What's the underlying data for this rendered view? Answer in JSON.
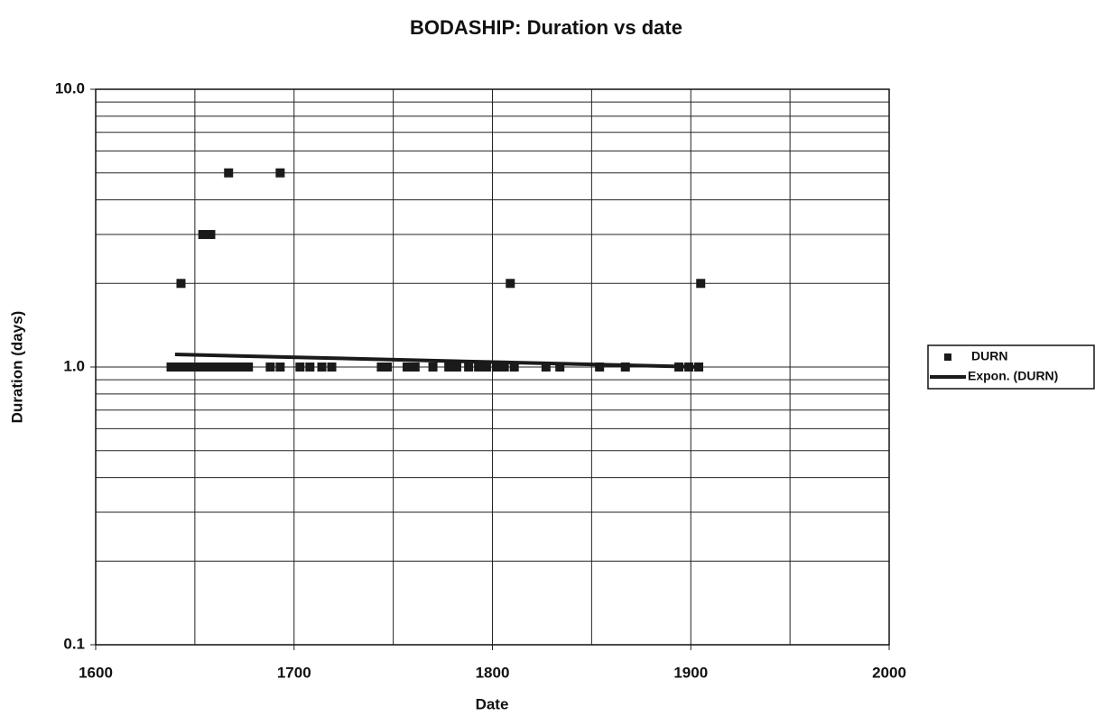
{
  "chart_data": {
    "type": "scatter",
    "title": "BODASHIP: Duration vs date",
    "x_label": "Date",
    "y_label": "Duration (days)",
    "xlim": [
      1600,
      2000
    ],
    "xticks": [
      1600,
      1700,
      1800,
      1900,
      2000
    ],
    "x_minor_ticks": [
      1650,
      1750,
      1850,
      1950
    ],
    "ylim": [
      0.1,
      10
    ],
    "yticks": [
      0.1,
      {
        "value": 1,
        "label": "1.0"
      },
      {
        "value": 10,
        "label": "10.0"
      }
    ],
    "log_y": true,
    "minor_grid": true,
    "grid": true,
    "legend": "right",
    "series": [
      {
        "name": "DURN",
        "color": "#1a1a1a",
        "x": [
          1643,
          1654,
          1658,
          1667,
          1693,
          1809,
          1905,
          1638,
          1641,
          1644,
          1647,
          1650,
          1653,
          1656,
          1659,
          1662,
          1665,
          1668,
          1671,
          1674,
          1677,
          1688,
          1693,
          1703,
          1708,
          1714,
          1719,
          1744,
          1747,
          1757,
          1761,
          1770,
          1778,
          1782,
          1788,
          1793,
          1797,
          1802,
          1806,
          1811,
          1827,
          1834,
          1854,
          1867,
          1894,
          1899,
          1904
        ],
        "values": [
          2,
          3,
          3,
          5,
          5,
          2,
          2,
          1,
          1,
          1,
          1,
          1,
          1,
          1,
          1,
          1,
          1,
          1,
          1,
          1,
          1,
          1,
          1,
          1,
          1,
          1,
          1,
          1,
          1,
          1,
          1,
          1,
          1,
          1,
          1,
          1,
          1,
          1,
          1,
          1,
          1,
          1,
          1,
          1,
          1,
          1,
          1
        ]
      },
      {
        "name": "Expon. (DURN)",
        "color": "#1a1a1a",
        "line": true,
        "x": [
          1640,
          1905
        ],
        "values": [
          1.11,
          1.0
        ]
      }
    ]
  }
}
